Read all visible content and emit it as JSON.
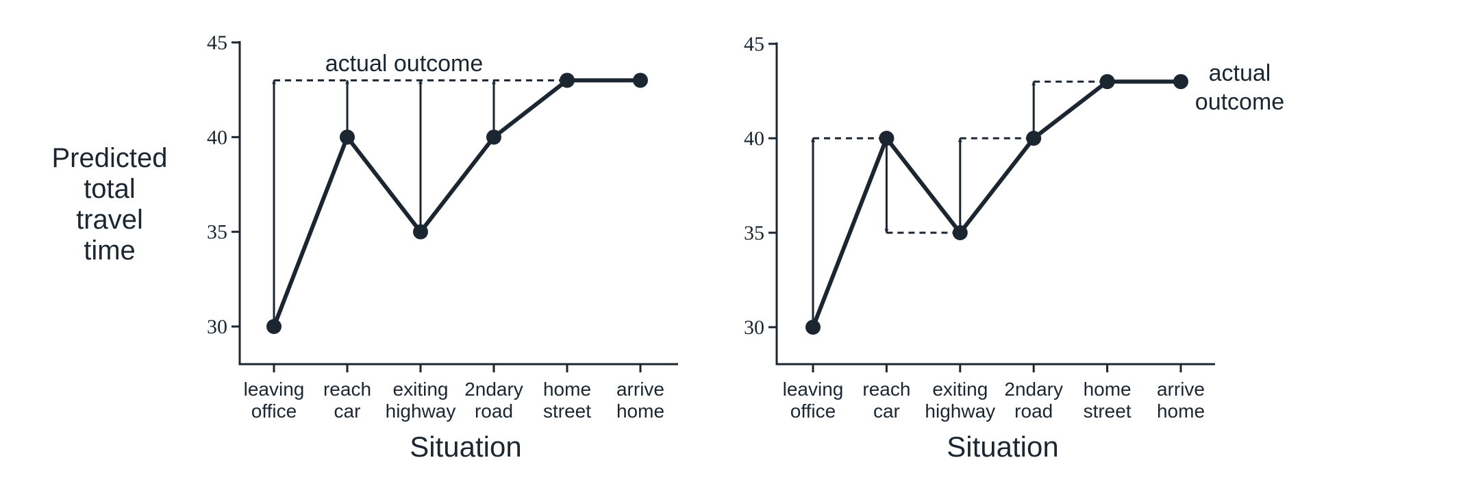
{
  "chart_data": [
    {
      "type": "line",
      "categories": [
        [
          "leaving",
          "office"
        ],
        [
          "reach",
          "car"
        ],
        [
          "exiting",
          "highway"
        ],
        [
          "2ndary",
          "road"
        ],
        [
          "home",
          "street"
        ],
        [
          "arrive",
          "home"
        ]
      ],
      "values": [
        30,
        40,
        35,
        40,
        43,
        43
      ],
      "actual_outcome": 43,
      "annotation": [
        "actual outcome"
      ],
      "arrows": [
        {
          "x": 0,
          "from": 30,
          "to": 43
        },
        {
          "x": 1,
          "from": 40,
          "to": 43
        },
        {
          "x": 2,
          "from": 35,
          "to": 43
        },
        {
          "x": 3,
          "from": 40,
          "to": 43
        }
      ],
      "dashed": [
        {
          "x0": 0,
          "x1": 5,
          "y": 43
        }
      ],
      "ylabel": [
        "Predicted",
        "total",
        "travel",
        "time"
      ],
      "xlabel": "Situation",
      "yticks": [
        30,
        35,
        40,
        45
      ],
      "ylim": [
        28,
        45
      ]
    },
    {
      "type": "line",
      "categories": [
        [
          "leaving",
          "office"
        ],
        [
          "reach",
          "car"
        ],
        [
          "exiting",
          "highway"
        ],
        [
          "2ndary",
          "road"
        ],
        [
          "home",
          "street"
        ],
        [
          "arrive",
          "home"
        ]
      ],
      "values": [
        30,
        40,
        35,
        40,
        43,
        43
      ],
      "actual_outcome": 43,
      "annotation": [
        "actual",
        "outcome"
      ],
      "arrows": [
        {
          "x": 0,
          "from": 30,
          "to": 40
        },
        {
          "x": 1,
          "from": 40,
          "to": 35
        },
        {
          "x": 2,
          "from": 35,
          "to": 40
        },
        {
          "x": 3,
          "from": 40,
          "to": 43
        }
      ],
      "dashed": [
        {
          "x0": 0,
          "x1": 1,
          "y": 40
        },
        {
          "x0": 1,
          "x1": 2,
          "y": 35
        },
        {
          "x0": 2,
          "x1": 3,
          "y": 40
        },
        {
          "x0": 3,
          "x1": 5,
          "y": 43
        }
      ],
      "ylabel": [],
      "xlabel": "Situation",
      "yticks": [
        30,
        35,
        40,
        45
      ],
      "ylim": [
        28,
        45
      ]
    }
  ]
}
